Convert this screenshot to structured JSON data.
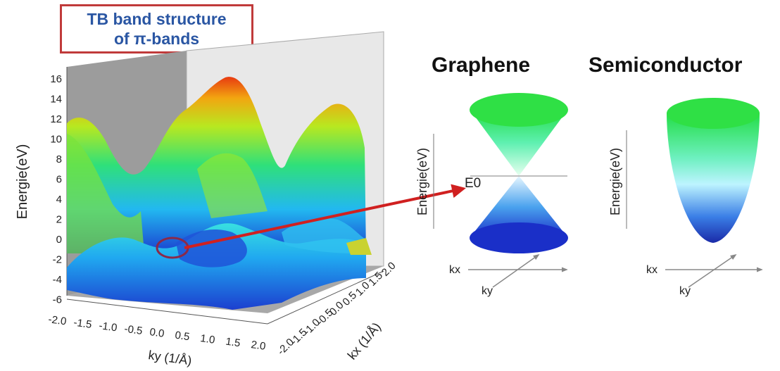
{
  "title_box": {
    "line1": "TB band structure",
    "line2": "of π-bands"
  },
  "plot3d": {
    "z_label": "Energie(eV)",
    "z_ticks": [
      "16",
      "14",
      "12",
      "10",
      "8",
      "6",
      "4",
      "2",
      "0",
      "-2",
      "-4",
      "-6"
    ],
    "ky_ticks": [
      "-2.0",
      "-1.5",
      "-1.0",
      "-0.5",
      "0.0",
      "0.5",
      "1.0",
      "1.5",
      "2.0"
    ],
    "kx_ticks": [
      "-2.0",
      "-1.5",
      "-1.0",
      "-0.5",
      "0.0",
      "0.5",
      "1.0",
      "1.5",
      "2.0"
    ],
    "ky_label": "ky (1/Å)",
    "kx_label": "kx (1/Å)"
  },
  "graphene": {
    "title": "Graphene",
    "y_label": "Energie(eV)",
    "fermi_label": "E0",
    "kx_label": "kx",
    "ky_label": "ky"
  },
  "semiconductor": {
    "title": "Semiconductor",
    "y_label": "Energie(eV)",
    "kx_label": "kx",
    "ky_label": "ky"
  },
  "colors": {
    "title_border": "#c03a3a",
    "title_text": "#2a56a3",
    "arrow": "#d02020",
    "cone_top": "#22dd44",
    "cone_bottom": "#1a2fc8"
  }
}
